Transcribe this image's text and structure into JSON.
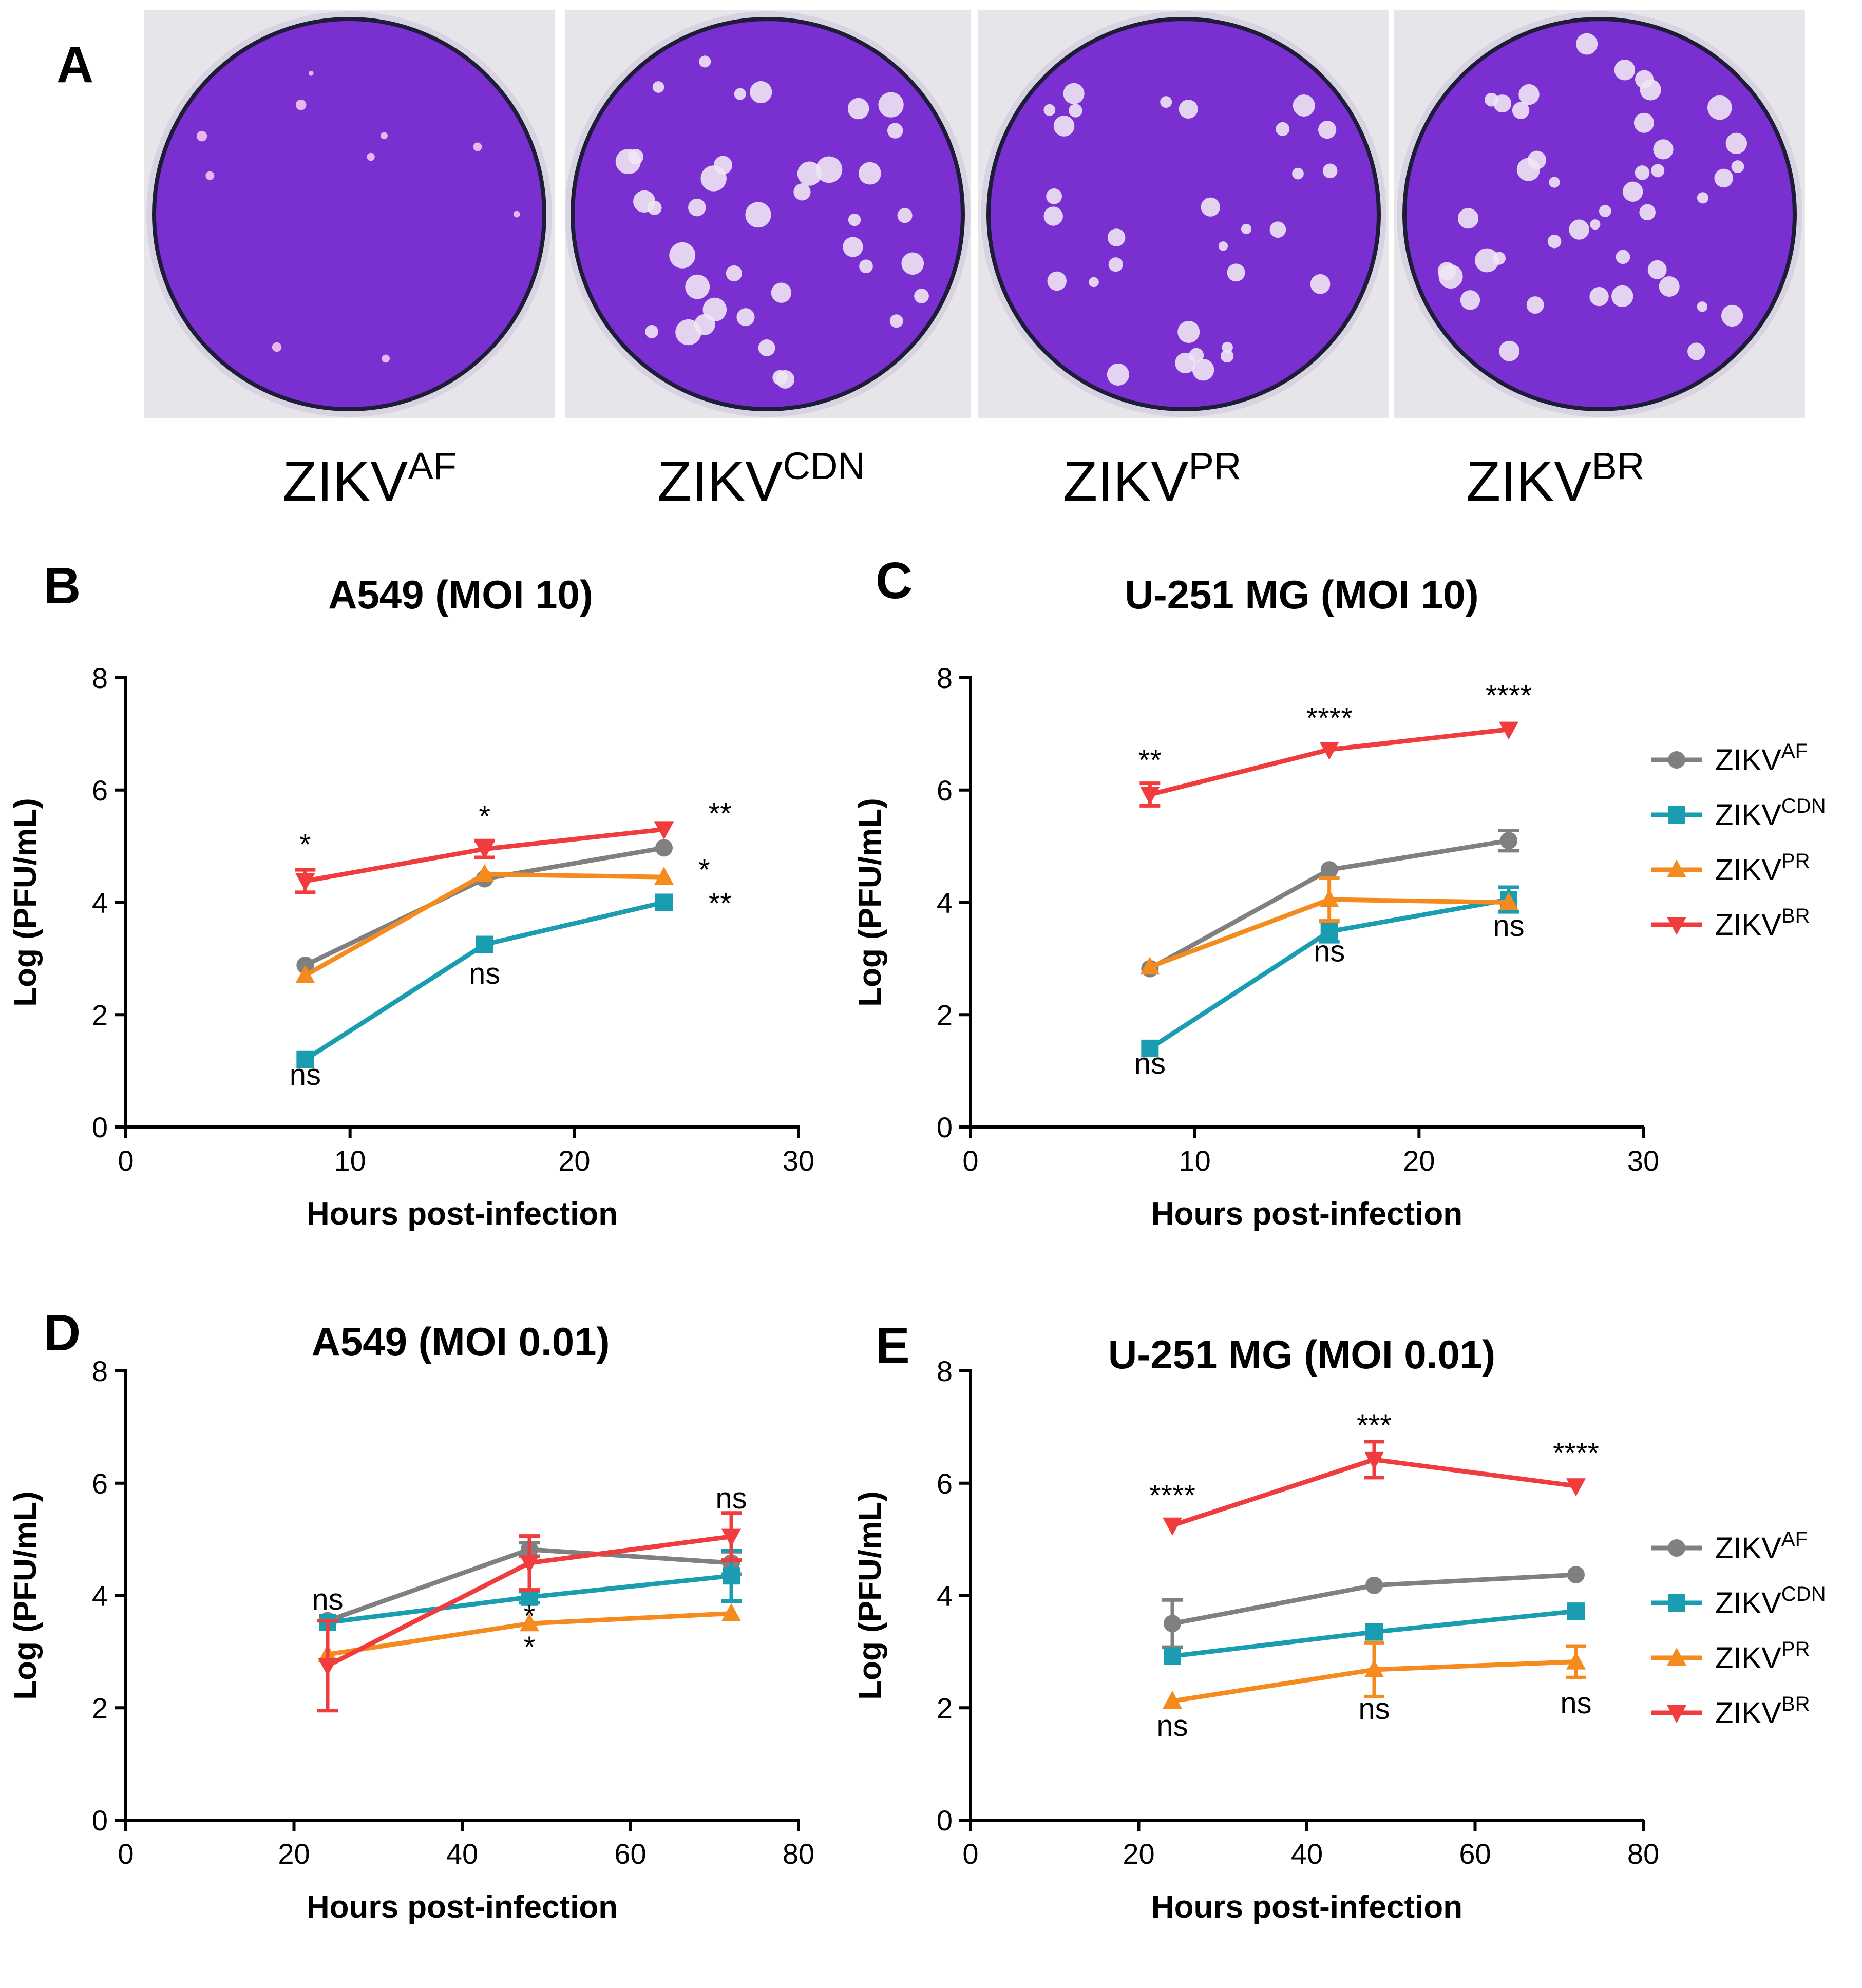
{
  "figure": {
    "panel_a": {
      "letter": "A",
      "dishes": [
        {
          "base": "ZIKV",
          "sup": "AF"
        },
        {
          "base": "ZIKV",
          "sup": "CDN"
        },
        {
          "base": "ZIKV",
          "sup": "PR"
        },
        {
          "base": "ZIKV",
          "sup": "BR"
        }
      ]
    },
    "colors": {
      "AF": "#808080",
      "CDN": "#1a9db0",
      "PR": "#f58a1f",
      "BR": "#f03c3c",
      "dish_bg": "#7a2fd0",
      "dish_rim": "#222244"
    },
    "legend": [
      {
        "base": "ZIKV",
        "sup": "AF",
        "marker": "circle"
      },
      {
        "base": "ZIKV",
        "sup": "CDN",
        "marker": "square"
      },
      {
        "base": "ZIKV",
        "sup": "PR",
        "marker": "triangle-up"
      },
      {
        "base": "ZIKV",
        "sup": "BR",
        "marker": "triangle-down"
      }
    ]
  },
  "chart_data": [
    {
      "panel": "B",
      "type": "line",
      "title": "A549 (MOI 10)",
      "xlabel": "Hours post-infection",
      "ylabel": "Log (PFU/mL)",
      "xlim": [
        0,
        30
      ],
      "ylim": [
        0,
        8
      ],
      "xticks": [
        0,
        10,
        20,
        30
      ],
      "yticks": [
        0,
        2,
        4,
        6,
        8
      ],
      "legend_shown": false,
      "series": [
        {
          "name": "ZIKV-AF",
          "key": "AF",
          "x": [
            8,
            16,
            24
          ],
          "y": [
            2.88,
            4.42,
            4.97
          ],
          "err": [
            0,
            0,
            0
          ]
        },
        {
          "name": "ZIKV-CDN",
          "key": "CDN",
          "x": [
            8,
            16,
            24
          ],
          "y": [
            1.2,
            3.25,
            4.0
          ],
          "err": [
            0,
            0,
            0
          ]
        },
        {
          "name": "ZIKV-PR",
          "key": "PR",
          "x": [
            8,
            16,
            24
          ],
          "y": [
            2.7,
            4.5,
            4.45
          ],
          "err": [
            0,
            0,
            0
          ]
        },
        {
          "name": "ZIKV-BR",
          "key": "BR",
          "x": [
            8,
            16,
            24
          ],
          "y": [
            4.38,
            4.95,
            5.3
          ],
          "err": [
            0.2,
            0.15,
            0
          ]
        }
      ],
      "annotations": [
        {
          "x": 8,
          "y": 4.85,
          "text": "*"
        },
        {
          "x": 16,
          "y": 5.35,
          "text": "*"
        },
        {
          "x": 26.5,
          "y": 5.4,
          "text": "**"
        },
        {
          "x": 25.8,
          "y": 4.4,
          "text": "*"
        },
        {
          "x": 26.5,
          "y": 3.8,
          "text": "**"
        },
        {
          "x": 16,
          "y": 2.55,
          "text": "ns"
        },
        {
          "x": 8,
          "y": 0.75,
          "text": "ns"
        }
      ]
    },
    {
      "panel": "C",
      "type": "line",
      "title": "U-251 MG (MOI 10)",
      "xlabel": "Hours post-infection",
      "ylabel": "Log (PFU/mL)",
      "xlim": [
        0,
        30
      ],
      "ylim": [
        0,
        8
      ],
      "xticks": [
        0,
        10,
        20,
        30
      ],
      "yticks": [
        0,
        2,
        4,
        6,
        8
      ],
      "legend_shown": true,
      "series": [
        {
          "name": "ZIKV-AF",
          "key": "AF",
          "x": [
            8,
            16,
            24
          ],
          "y": [
            2.82,
            4.58,
            5.1
          ],
          "err": [
            0,
            0,
            0.18
          ]
        },
        {
          "name": "ZIKV-CDN",
          "key": "CDN",
          "x": [
            8,
            16,
            24
          ],
          "y": [
            1.4,
            3.48,
            4.05
          ],
          "err": [
            0,
            0.18,
            0.22
          ]
        },
        {
          "name": "ZIKV-PR",
          "key": "PR",
          "x": [
            8,
            16,
            24
          ],
          "y": [
            2.85,
            4.05,
            4.0
          ],
          "err": [
            0,
            0.38,
            0
          ]
        },
        {
          "name": "ZIKV-BR",
          "key": "BR",
          "x": [
            8,
            16,
            24
          ],
          "y": [
            5.92,
            6.72,
            7.08
          ],
          "err": [
            0.2,
            0,
            0
          ]
        }
      ],
      "annotations": [
        {
          "x": 8,
          "y": 6.35,
          "text": "**"
        },
        {
          "x": 16,
          "y": 7.1,
          "text": "****"
        },
        {
          "x": 24,
          "y": 7.5,
          "text": "****"
        },
        {
          "x": 16,
          "y": 2.95,
          "text": "ns"
        },
        {
          "x": 24,
          "y": 3.4,
          "text": "ns"
        },
        {
          "x": 8,
          "y": 0.95,
          "text": "ns"
        }
      ]
    },
    {
      "panel": "D",
      "type": "line",
      "title": "A549 (MOI 0.01)",
      "xlabel": "Hours post-infection",
      "ylabel": "Log (PFU/mL)",
      "xlim": [
        0,
        80
      ],
      "ylim": [
        0,
        8
      ],
      "xticks": [
        0,
        20,
        40,
        60,
        80
      ],
      "yticks": [
        0,
        2,
        4,
        6,
        8
      ],
      "legend_shown": false,
      "series": [
        {
          "name": "ZIKV-AF",
          "key": "AF",
          "x": [
            24,
            48,
            72
          ],
          "y": [
            3.55,
            4.82,
            4.58
          ],
          "err": [
            0,
            0.12,
            0.2
          ]
        },
        {
          "name": "ZIKV-CDN",
          "key": "CDN",
          "x": [
            24,
            48,
            72
          ],
          "y": [
            3.52,
            3.97,
            4.35
          ],
          "err": [
            0,
            0.1,
            0.45
          ]
        },
        {
          "name": "ZIKV-PR",
          "key": "PR",
          "x": [
            24,
            48,
            72
          ],
          "y": [
            2.95,
            3.5,
            3.68
          ],
          "err": [
            0,
            0,
            0
          ]
        },
        {
          "name": "ZIKV-BR",
          "key": "BR",
          "x": [
            24,
            48,
            72
          ],
          "y": [
            2.75,
            4.58,
            5.05
          ],
          "err": [
            0.8,
            0.48,
            0.42
          ]
        }
      ],
      "annotations": [
        {
          "x": 24,
          "y": 3.75,
          "text": "ns"
        },
        {
          "x": 48,
          "y": 3.45,
          "text": "*"
        },
        {
          "x": 48,
          "y": 2.9,
          "text": "*"
        },
        {
          "x": 72,
          "y": 5.55,
          "text": "ns"
        }
      ]
    },
    {
      "panel": "E",
      "type": "line",
      "title": "U-251 MG (MOI 0.01)",
      "xlabel": "Hours post-infection",
      "ylabel": "Log (PFU/mL)",
      "xlim": [
        0,
        80
      ],
      "ylim": [
        0,
        8
      ],
      "xticks": [
        0,
        20,
        40,
        60,
        80
      ],
      "yticks": [
        0,
        2,
        4,
        6,
        8
      ],
      "legend_shown": true,
      "series": [
        {
          "name": "ZIKV-AF",
          "key": "AF",
          "x": [
            24,
            48,
            72
          ],
          "y": [
            3.5,
            4.18,
            4.37
          ],
          "err": [
            0.42,
            0,
            0
          ]
        },
        {
          "name": "ZIKV-CDN",
          "key": "CDN",
          "x": [
            24,
            48,
            72
          ],
          "y": [
            2.92,
            3.35,
            3.72
          ],
          "err": [
            0,
            0,
            0
          ]
        },
        {
          "name": "ZIKV-PR",
          "key": "PR",
          "x": [
            24,
            48,
            72
          ],
          "y": [
            2.12,
            2.68,
            2.82
          ],
          "err": [
            0,
            0.48,
            0.28
          ]
        },
        {
          "name": "ZIKV-BR",
          "key": "BR",
          "x": [
            24,
            48,
            72
          ],
          "y": [
            5.25,
            6.42,
            5.95
          ],
          "err": [
            0,
            0.32,
            0
          ]
        }
      ],
      "annotations": [
        {
          "x": 24,
          "y": 5.6,
          "text": "****"
        },
        {
          "x": 48,
          "y": 6.85,
          "text": "***"
        },
        {
          "x": 72,
          "y": 6.35,
          "text": "****"
        },
        {
          "x": 24,
          "y": 1.5,
          "text": "ns"
        },
        {
          "x": 48,
          "y": 1.8,
          "text": "ns"
        },
        {
          "x": 72,
          "y": 1.9,
          "text": "ns"
        }
      ]
    }
  ]
}
